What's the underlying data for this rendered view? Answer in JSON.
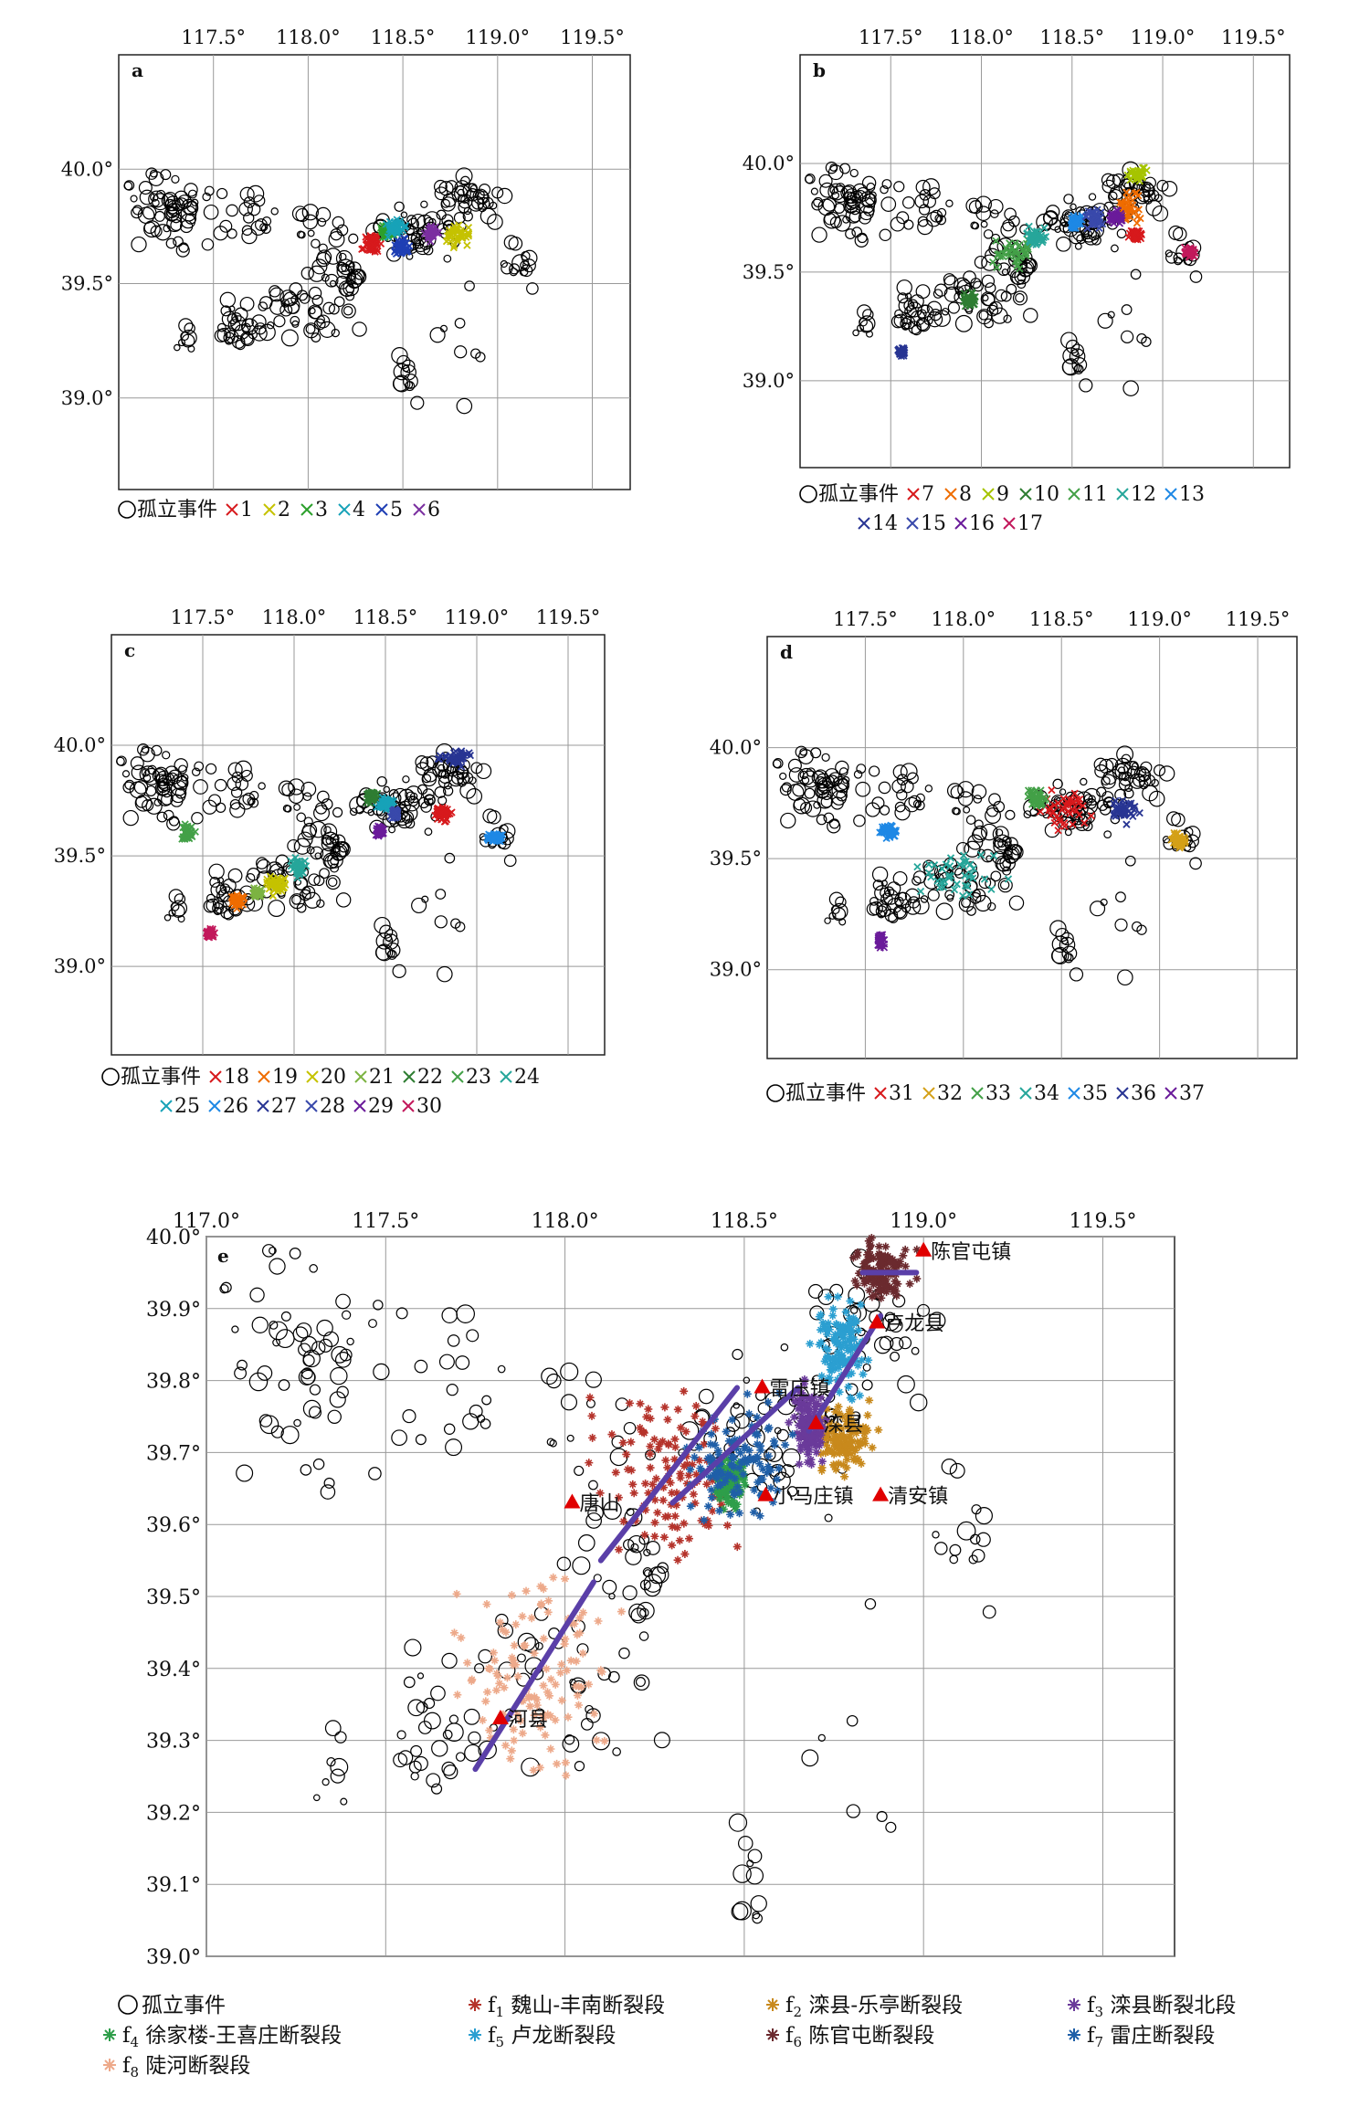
{
  "panels": [
    {
      "id": "a",
      "label": "a",
      "xlim": [
        117.0,
        119.7
      ],
      "ylim": [
        38.6,
        40.5
      ],
      "xticks": [
        {
          "v": 117.5,
          "t": "117.5°"
        },
        {
          "v": 118.0,
          "t": "118.0°"
        },
        {
          "v": 118.5,
          "t": "118.5°"
        },
        {
          "v": 119.0,
          "t": "119.0°"
        },
        {
          "v": 119.5,
          "t": "119.5°"
        }
      ],
      "yticks": [
        {
          "v": 40.0,
          "t": "40.0°"
        },
        {
          "v": 39.5,
          "t": "39.5°"
        },
        {
          "v": 39.0,
          "t": "39.0°"
        }
      ],
      "legend_rows": [
        [
          {
            "label": "孤立事件",
            "marker": "circle",
            "color": "#000000"
          },
          {
            "label": "1",
            "color": "#d7191c"
          },
          {
            "label": "2",
            "color": "#c5c200"
          },
          {
            "label": "3",
            "color": "#2ca02c"
          },
          {
            "label": "4",
            "color": "#17a2b8"
          },
          {
            "label": "5",
            "color": "#1f3fb4"
          },
          {
            "label": "6",
            "color": "#7b2fa0"
          }
        ]
      ],
      "clusters": [
        {
          "color": "#d7191c",
          "x": 118.33,
          "y": 39.68,
          "rx": 0.05,
          "ry": 0.04
        },
        {
          "color": "#c5c200",
          "x": 118.78,
          "y": 39.72,
          "rx": 0.06,
          "ry": 0.05
        },
        {
          "color": "#2ca02c",
          "x": 118.42,
          "y": 39.73,
          "rx": 0.04,
          "ry": 0.03
        },
        {
          "color": "#17a2b8",
          "x": 118.46,
          "y": 39.74,
          "rx": 0.05,
          "ry": 0.04
        },
        {
          "color": "#1f3fb4",
          "x": 118.49,
          "y": 39.66,
          "rx": 0.04,
          "ry": 0.03
        },
        {
          "color": "#7b2fa0",
          "x": 118.65,
          "y": 39.72,
          "rx": 0.03,
          "ry": 0.03
        }
      ]
    },
    {
      "id": "b",
      "label": "b",
      "xlim": [
        117.0,
        119.7
      ],
      "ylim": [
        38.6,
        40.5
      ],
      "xticks": [
        {
          "v": 117.5,
          "t": "117.5°"
        },
        {
          "v": 118.0,
          "t": "118.0°"
        },
        {
          "v": 118.5,
          "t": "118.5°"
        },
        {
          "v": 119.0,
          "t": "119.0°"
        },
        {
          "v": 119.5,
          "t": "119.5°"
        }
      ],
      "yticks": [
        {
          "v": 40.0,
          "t": "40.0°"
        },
        {
          "v": 39.5,
          "t": "39.5°"
        },
        {
          "v": 39.0,
          "t": "39.0°"
        }
      ],
      "legend_rows": [
        [
          {
            "label": "孤立事件",
            "marker": "circle",
            "color": "#000000"
          },
          {
            "label": "7",
            "color": "#d7191c"
          },
          {
            "label": "8",
            "color": "#ef6c00"
          },
          {
            "label": "9",
            "color": "#a6c400"
          },
          {
            "label": "10",
            "color": "#2e7d32"
          },
          {
            "label": "11",
            "color": "#43a047"
          },
          {
            "label": "12",
            "color": "#26a69a"
          },
          {
            "label": "13",
            "color": "#1e88e5"
          }
        ],
        [
          {
            "label": "14",
            "color": "#283593"
          },
          {
            "label": "15",
            "color": "#3949ab"
          },
          {
            "label": "16",
            "color": "#6a1b9a"
          },
          {
            "label": "17",
            "color": "#c2185b"
          }
        ]
      ],
      "clusters": [
        {
          "color": "#d7191c",
          "x": 118.85,
          "y": 39.67,
          "rx": 0.03,
          "ry": 0.02
        },
        {
          "color": "#ef6c00",
          "x": 118.82,
          "y": 39.8,
          "rx": 0.06,
          "ry": 0.06
        },
        {
          "color": "#a6c400",
          "x": 118.87,
          "y": 39.95,
          "rx": 0.05,
          "ry": 0.03
        },
        {
          "color": "#2e7d32",
          "x": 117.93,
          "y": 39.37,
          "rx": 0.04,
          "ry": 0.03
        },
        {
          "color": "#43a047",
          "x": 118.18,
          "y": 39.59,
          "rx": 0.12,
          "ry": 0.06
        },
        {
          "color": "#26a69a",
          "x": 118.3,
          "y": 39.66,
          "rx": 0.05,
          "ry": 0.04
        },
        {
          "color": "#1e88e5",
          "x": 118.52,
          "y": 39.73,
          "rx": 0.03,
          "ry": 0.03
        },
        {
          "color": "#283593",
          "x": 117.56,
          "y": 39.13,
          "rx": 0.02,
          "ry": 0.02
        },
        {
          "color": "#3949ab",
          "x": 118.62,
          "y": 39.75,
          "rx": 0.04,
          "ry": 0.04
        },
        {
          "color": "#6a1b9a",
          "x": 118.74,
          "y": 39.75,
          "rx": 0.03,
          "ry": 0.03
        },
        {
          "color": "#c2185b",
          "x": 119.15,
          "y": 39.59,
          "rx": 0.03,
          "ry": 0.02
        }
      ]
    },
    {
      "id": "c",
      "label": "c",
      "xlim": [
        117.0,
        119.7
      ],
      "ylim": [
        38.6,
        40.5
      ],
      "xticks": [
        {
          "v": 117.5,
          "t": "117.5°"
        },
        {
          "v": 118.0,
          "t": "118.0°"
        },
        {
          "v": 118.5,
          "t": "118.5°"
        },
        {
          "v": 119.0,
          "t": "119.0°"
        },
        {
          "v": 119.5,
          "t": "119.5°"
        }
      ],
      "yticks": [
        {
          "v": 40.0,
          "t": "40.0°"
        },
        {
          "v": 39.5,
          "t": "39.5°"
        },
        {
          "v": 39.0,
          "t": "39.0°"
        }
      ],
      "legend_rows": [
        [
          {
            "label": "孤立事件",
            "marker": "circle",
            "color": "#000000"
          },
          {
            "label": "18",
            "color": "#d7191c"
          },
          {
            "label": "19",
            "color": "#ef6c00"
          },
          {
            "label": "20",
            "color": "#c5c200"
          },
          {
            "label": "21",
            "color": "#7cb342"
          },
          {
            "label": "22",
            "color": "#2e7d32"
          },
          {
            "label": "23",
            "color": "#43a047"
          },
          {
            "label": "24",
            "color": "#26a69a"
          }
        ],
        [
          {
            "label": "25",
            "color": "#17a2b8"
          },
          {
            "label": "26",
            "color": "#1e88e5"
          },
          {
            "label": "27",
            "color": "#283593"
          },
          {
            "label": "28",
            "color": "#3949ab"
          },
          {
            "label": "29",
            "color": "#6a1b9a"
          },
          {
            "label": "30",
            "color": "#c2185b"
          }
        ]
      ],
      "clusters": [
        {
          "color": "#d7191c",
          "x": 118.82,
          "y": 39.69,
          "rx": 0.04,
          "ry": 0.03
        },
        {
          "color": "#ef6c00",
          "x": 117.7,
          "y": 39.3,
          "rx": 0.04,
          "ry": 0.03
        },
        {
          "color": "#c5c200",
          "x": 117.9,
          "y": 39.37,
          "rx": 0.06,
          "ry": 0.04
        },
        {
          "color": "#7cb342",
          "x": 117.8,
          "y": 39.33,
          "rx": 0.03,
          "ry": 0.02
        },
        {
          "color": "#2e7d32",
          "x": 118.42,
          "y": 39.77,
          "rx": 0.03,
          "ry": 0.03
        },
        {
          "color": "#43a047",
          "x": 117.42,
          "y": 39.61,
          "rx": 0.03,
          "ry": 0.03
        },
        {
          "color": "#26a69a",
          "x": 118.02,
          "y": 39.45,
          "rx": 0.04,
          "ry": 0.04
        },
        {
          "color": "#17a2b8",
          "x": 118.5,
          "y": 39.73,
          "rx": 0.04,
          "ry": 0.03
        },
        {
          "color": "#1e88e5",
          "x": 119.1,
          "y": 39.58,
          "rx": 0.04,
          "ry": 0.02
        },
        {
          "color": "#283593",
          "x": 118.88,
          "y": 39.94,
          "rx": 0.08,
          "ry": 0.03
        },
        {
          "color": "#3949ab",
          "x": 118.55,
          "y": 39.69,
          "rx": 0.02,
          "ry": 0.02
        },
        {
          "color": "#6a1b9a",
          "x": 118.47,
          "y": 39.61,
          "rx": 0.02,
          "ry": 0.02
        },
        {
          "color": "#c2185b",
          "x": 117.54,
          "y": 39.15,
          "rx": 0.02,
          "ry": 0.02
        }
      ]
    },
    {
      "id": "d",
      "label": "d",
      "xlim": [
        117.0,
        119.7
      ],
      "ylim": [
        38.6,
        40.5
      ],
      "xticks": [
        {
          "v": 117.5,
          "t": "117.5°"
        },
        {
          "v": 118.0,
          "t": "118.0°"
        },
        {
          "v": 118.5,
          "t": "118.5°"
        },
        {
          "v": 119.0,
          "t": "119.0°"
        },
        {
          "v": 119.5,
          "t": "119.5°"
        }
      ],
      "yticks": [
        {
          "v": 40.0,
          "t": "40.0°"
        },
        {
          "v": 39.5,
          "t": "39.5°"
        },
        {
          "v": 39.0,
          "t": "39.0°"
        }
      ],
      "legend_rows": [
        [
          {
            "label": "孤立事件",
            "marker": "circle",
            "color": "#000000"
          },
          {
            "label": "31",
            "color": "#d7191c"
          },
          {
            "label": "32",
            "color": "#d4a017"
          },
          {
            "label": "33",
            "color": "#43a047"
          },
          {
            "label": "34",
            "color": "#26a69a"
          },
          {
            "label": "35",
            "color": "#1e88e5"
          },
          {
            "label": "36",
            "color": "#283593"
          },
          {
            "label": "37",
            "color": "#6a1b9a"
          }
        ]
      ],
      "clusters": [
        {
          "color": "#d7191c",
          "x": 118.52,
          "y": 39.72,
          "rx": 0.14,
          "ry": 0.08
        },
        {
          "color": "#d4a017",
          "x": 119.1,
          "y": 39.58,
          "rx": 0.04,
          "ry": 0.04
        },
        {
          "color": "#43a047",
          "x": 118.38,
          "y": 39.77,
          "rx": 0.05,
          "ry": 0.04
        },
        {
          "color": "#26a69a",
          "x": 117.95,
          "y": 39.43,
          "rx": 0.22,
          "ry": 0.1
        },
        {
          "color": "#1e88e5",
          "x": 117.62,
          "y": 39.62,
          "rx": 0.04,
          "ry": 0.03
        },
        {
          "color": "#283593",
          "x": 118.82,
          "y": 39.72,
          "rx": 0.06,
          "ry": 0.05
        },
        {
          "color": "#6a1b9a",
          "x": 117.58,
          "y": 39.13,
          "rx": 0.02,
          "ry": 0.03
        }
      ]
    }
  ],
  "panel_e": {
    "label": "e",
    "xlim": [
      117.0,
      119.7
    ],
    "ylim": [
      39.0,
      40.0
    ],
    "xticks": [
      {
        "v": 117.0,
        "t": "117.0°"
      },
      {
        "v": 117.5,
        "t": "117.5°"
      },
      {
        "v": 118.0,
        "t": "118.0°"
      },
      {
        "v": 118.5,
        "t": "118.5°"
      },
      {
        "v": 119.0,
        "t": "119.0°"
      },
      {
        "v": 119.5,
        "t": "119.5°"
      }
    ],
    "yticks": [
      {
        "v": 40.0,
        "t": "40.0°"
      },
      {
        "v": 39.9,
        "t": "39.9°"
      },
      {
        "v": 39.8,
        "t": "39.8°"
      },
      {
        "v": 39.7,
        "t": "39.7°"
      },
      {
        "v": 39.6,
        "t": "39.6°"
      },
      {
        "v": 39.5,
        "t": "39.5°"
      },
      {
        "v": 39.4,
        "t": "39.4°"
      },
      {
        "v": 39.3,
        "t": "39.3°"
      },
      {
        "v": 39.2,
        "t": "39.2°"
      },
      {
        "v": 39.1,
        "t": "39.1°"
      },
      {
        "v": 39.0,
        "t": "39.0°"
      }
    ],
    "towns": [
      {
        "name": "陈官屯镇",
        "lon": 119.0,
        "lat": 39.98
      },
      {
        "name": "卢龙县",
        "lon": 118.87,
        "lat": 39.88
      },
      {
        "name": "雷庄镇",
        "lon": 118.55,
        "lat": 39.79
      },
      {
        "name": "滦县",
        "lon": 118.7,
        "lat": 39.74
      },
      {
        "name": "唐山",
        "lon": 118.02,
        "lat": 39.63
      },
      {
        "name": "小马庄镇",
        "lon": 118.56,
        "lat": 39.64
      },
      {
        "name": "清安镇",
        "lon": 118.88,
        "lat": 39.64
      },
      {
        "name": "河县",
        "lon": 117.82,
        "lat": 39.33
      }
    ],
    "fault_traces": [
      [
        [
          118.1,
          39.55
        ],
        [
          118.48,
          39.79
        ]
      ],
      [
        [
          117.75,
          39.26
        ],
        [
          118.08,
          39.52
        ]
      ],
      [
        [
          118.3,
          39.63
        ],
        [
          118.65,
          39.79
        ]
      ],
      [
        [
          118.68,
          39.73
        ],
        [
          118.88,
          39.89
        ]
      ],
      [
        [
          118.83,
          39.95
        ],
        [
          118.98,
          39.95
        ]
      ]
    ],
    "segments": [
      {
        "name": "f1 魏山-丰南断裂段",
        "sym": "f",
        "sub": "1",
        "text": " 魏山-丰南断裂段",
        "color": "#b5332b",
        "x": 118.3,
        "y": 39.67,
        "rx": 0.2,
        "ry": 0.11
      },
      {
        "name": "f2 滦县-乐亭断裂段",
        "sym": "f",
        "sub": "2",
        "text": " 滦县-乐亭断裂段",
        "color": "#c8891c",
        "x": 118.78,
        "y": 39.72,
        "rx": 0.07,
        "ry": 0.04
      },
      {
        "name": "f3 滦县断裂北段",
        "sym": "f",
        "sub": "3",
        "text": " 滦县断裂北段",
        "color": "#6a3a9a",
        "x": 118.68,
        "y": 39.74,
        "rx": 0.04,
        "ry": 0.05
      },
      {
        "name": "f4 徐家楼-王喜庄断裂段",
        "sym": "f",
        "sub": "4",
        "text": " 徐家楼-王喜庄断裂段",
        "color": "#2e9e4a",
        "x": 118.46,
        "y": 39.66,
        "rx": 0.04,
        "ry": 0.03
      },
      {
        "name": "f5 卢龙断裂段",
        "sym": "f",
        "sub": "5",
        "text": " 卢龙断裂段",
        "color": "#2b9fd1",
        "x": 118.77,
        "y": 39.84,
        "rx": 0.07,
        "ry": 0.06
      },
      {
        "name": "f6 陈官屯断裂段",
        "sym": "f",
        "sub": "6",
        "text": " 陈官屯断裂段",
        "color": "#6b2a2e",
        "x": 118.88,
        "y": 39.95,
        "rx": 0.07,
        "ry": 0.04
      },
      {
        "name": "f7 雷庄断裂段",
        "sym": "f",
        "sub": "7",
        "text": " 雷庄断裂段",
        "color": "#1f5fa8",
        "x": 118.48,
        "y": 39.68,
        "rx": 0.13,
        "ry": 0.08
      },
      {
        "name": "f8 陡河断裂段",
        "sym": "f",
        "sub": "8",
        "text": " 陡河断裂段",
        "color": "#eda98a",
        "x": 117.92,
        "y": 39.39,
        "rx": 0.2,
        "ry": 0.12
      }
    ],
    "isolated_label": "孤立事件"
  }
}
